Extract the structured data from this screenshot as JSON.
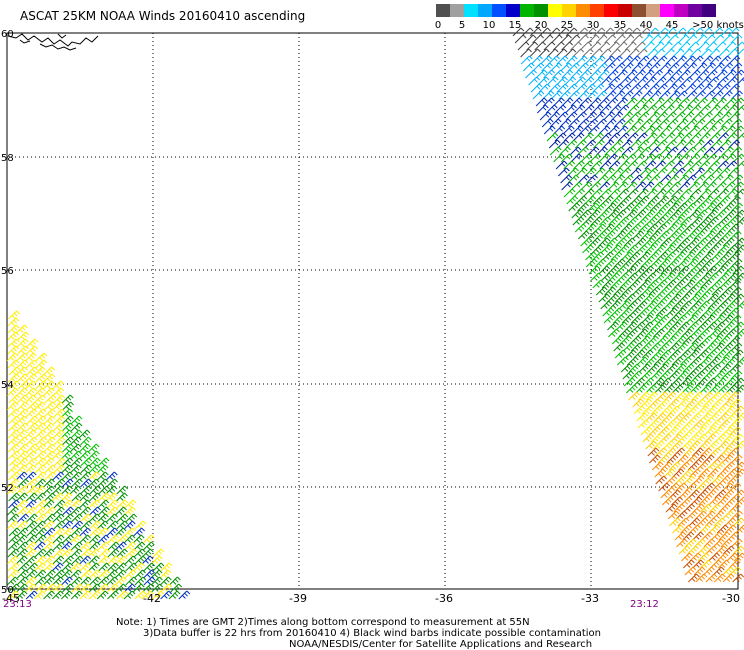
{
  "title": "ASCAT 25KM NOAA Winds 20160410 ascending",
  "scale": {
    "colors": [
      "#505050",
      "#a0a0a0",
      "#00e0ff",
      "#00a8ff",
      "#0050ff",
      "#0000c8",
      "#00b400",
      "#009000",
      "#ffff00",
      "#ffd200",
      "#ff8c00",
      "#ff4000",
      "#ff0000",
      "#c80000",
      "#8c5030",
      "#d2a080",
      "#ff00ff",
      "#c000c0",
      "#7000a0",
      "#400080"
    ],
    "labels": [
      "0",
      "5",
      "10",
      "15",
      "20",
      "25",
      "30",
      "35",
      "40",
      "45",
      ">50 knots"
    ]
  },
  "map": {
    "lat_labels": [
      "60",
      "58",
      "56",
      "54",
      "52",
      "50"
    ],
    "lon_labels": [
      "-45",
      "-42",
      "-39",
      "-36",
      "-33",
      "-30"
    ],
    "grid": true
  },
  "times": {
    "left": "23:13",
    "right": "23:12"
  },
  "notes": [
    "Note: 1) Times are GMT 2)Times along bottom correspond to measurement at 55N",
    "3)Data buffer is 22 hrs from 20160410 4) Black wind barbs indicate possible contamination",
    "NOAA/NESDIS/Center for Satellite Applications and Research"
  ]
}
